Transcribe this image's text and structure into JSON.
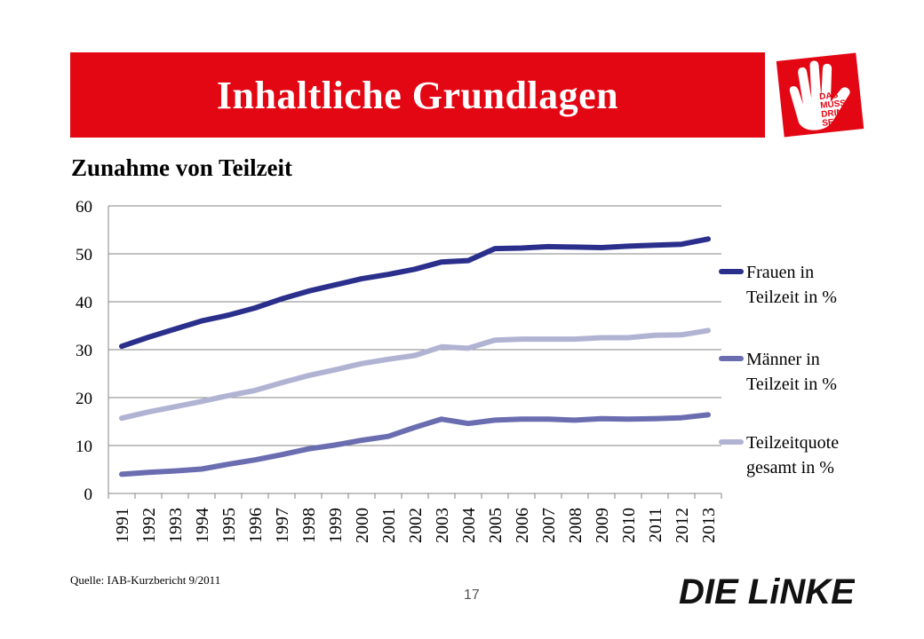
{
  "slide": {
    "title": "Inhaltliche Grundlagen",
    "subtitle": "Zunahme von Teilzeit",
    "source": "Quelle: IAB-Kurzbericht 9/2011",
    "page_number": "17"
  },
  "logos": {
    "hand_logo_text": [
      "DAS",
      "MUSS",
      "DRIN",
      "SEIN."
    ],
    "party_logo_text": "DIE LiNKE."
  },
  "colors": {
    "title_bar": "#e30613",
    "frauen": "#2b2f8c",
    "maenner": "#6a6db0",
    "gesamt": "#b1b3d3"
  },
  "chart_data": {
    "type": "line",
    "title": "",
    "xlabel": "",
    "ylabel": "",
    "x": [
      "1991",
      "1992",
      "1993",
      "1994",
      "1995",
      "1996",
      "1997",
      "1998",
      "1999",
      "2000",
      "2001",
      "2002",
      "2003",
      "2004",
      "2005",
      "2006",
      "2007",
      "2008",
      "2009",
      "2010",
      "2011",
      "2012",
      "2013"
    ],
    "ylim": [
      0,
      60
    ],
    "yticks": [
      "0",
      "10",
      "20",
      "30",
      "40",
      "50",
      "60"
    ],
    "grid": true,
    "legend": "right",
    "series": [
      {
        "name": "Frauen in Teilzeit in %",
        "legend_lines": [
          "Frauen in",
          "Teilzeit in %"
        ],
        "color": "#2b2f8c",
        "values": [
          30.7,
          32.6,
          34.3,
          36.0,
          37.2,
          38.7,
          40.6,
          42.2,
          43.5,
          44.8,
          45.7,
          46.8,
          48.3,
          48.6,
          51.1,
          51.2,
          51.5,
          51.4,
          51.3,
          51.6,
          51.8,
          52.0,
          53.1
        ]
      },
      {
        "name": "Männer in Teilzeit in %",
        "legend_lines": [
          "Männer in",
          "Teilzeit in %"
        ],
        "color": "#6a6db0",
        "values": [
          4.0,
          4.4,
          4.7,
          5.1,
          6.1,
          7.0,
          8.1,
          9.3,
          10.1,
          11.1,
          11.9,
          13.8,
          15.5,
          14.6,
          15.3,
          15.5,
          15.5,
          15.3,
          15.6,
          15.5,
          15.6,
          15.8,
          16.4
        ]
      },
      {
        "name": "Teilzeitquote gesamt in %",
        "legend_lines": [
          "Teilzeitquote",
          "gesamt in %"
        ],
        "color": "#b1b3d3",
        "values": [
          15.7,
          17.0,
          18.1,
          19.2,
          20.4,
          21.5,
          23.1,
          24.6,
          25.8,
          27.1,
          28.0,
          28.8,
          30.6,
          30.3,
          32.0,
          32.2,
          32.2,
          32.2,
          32.5,
          32.5,
          33.0,
          33.1,
          34.0
        ]
      }
    ]
  }
}
